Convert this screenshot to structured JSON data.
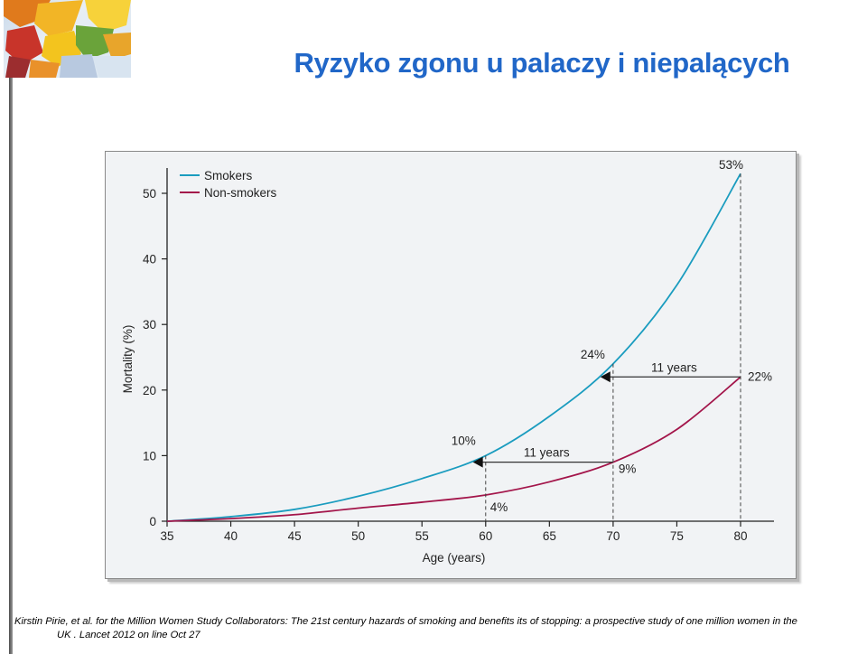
{
  "slide": {
    "title": "Ryzyko zgonu u palaczy i niepalących",
    "citation_line1": "Kirstin Pirie, et al. for the Million Women Study Collaborators: The 21st century hazards of smoking and benefits its of stopping: a prospective study of one million women in the",
    "citation_line2": "UK . Lancet 2012 on line Oct 27"
  },
  "colors": {
    "title": "#2167c8",
    "smokers": "#1a9cbf",
    "non_smokers": "#a3154a",
    "plot_bg": "#f1f3f5"
  },
  "chart_data": {
    "type": "line",
    "xlabel": "Age (years)",
    "ylabel": "Mortality (%)",
    "xlim": [
      35,
      80
    ],
    "ylim": [
      0,
      50
    ],
    "x_ticks": [
      35,
      40,
      45,
      50,
      55,
      60,
      65,
      70,
      75,
      80
    ],
    "y_ticks": [
      0,
      10,
      20,
      30,
      40,
      50
    ],
    "legend_position": "top-left",
    "grid": false,
    "series": [
      {
        "name": "Smokers",
        "x": [
          35,
          40,
          45,
          50,
          55,
          60,
          65,
          70,
          75,
          80
        ],
        "y": [
          0,
          0.7,
          1.8,
          3.8,
          6.5,
          10,
          16,
          24,
          36,
          53
        ]
      },
      {
        "name": "Non-smokers",
        "x": [
          35,
          40,
          45,
          50,
          55,
          60,
          65,
          70,
          75,
          80
        ],
        "y": [
          0,
          0.4,
          1,
          2,
          2.9,
          4,
          6,
          9,
          14,
          22
        ]
      }
    ],
    "annotations": [
      {
        "text": "53%",
        "x": 80,
        "y": 53
      },
      {
        "text": "24%",
        "x": 70,
        "y": 24
      },
      {
        "text": "22%",
        "x": 80,
        "y": 22
      },
      {
        "text": "10%",
        "x": 60,
        "y": 10
      },
      {
        "text": "9%",
        "x": 70,
        "y": 9
      },
      {
        "text": "4%",
        "x": 60,
        "y": 4
      },
      {
        "text": "11 years",
        "from_x": 80,
        "to_x": 69,
        "y": 22
      },
      {
        "text": "11 years",
        "from_x": 70,
        "to_x": 59,
        "y": 9
      }
    ]
  }
}
